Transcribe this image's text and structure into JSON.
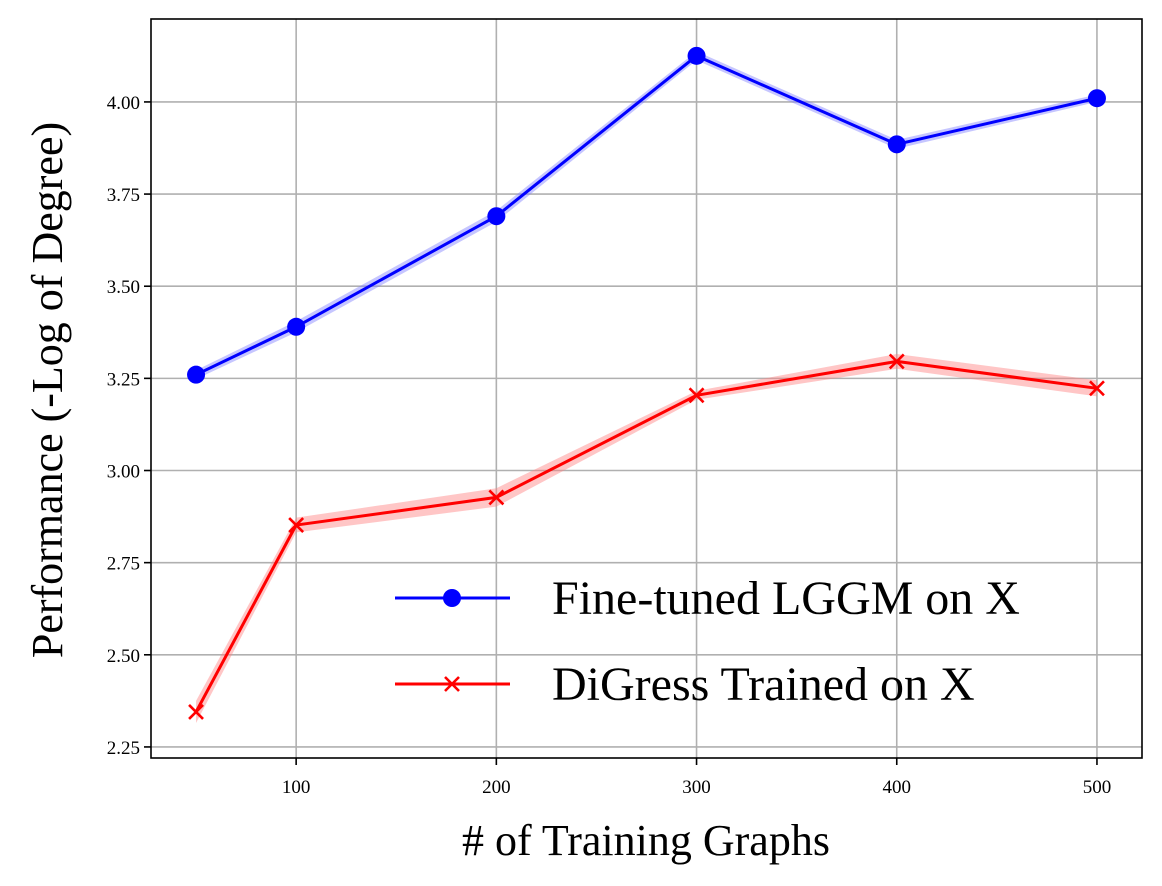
{
  "chart_data": {
    "type": "line",
    "title": "",
    "xlabel": "# of Training Graphs",
    "ylabel": "Performance (-Log of Degree)",
    "x": [
      50,
      100,
      200,
      300,
      400,
      500
    ],
    "xlim": [
      27.5,
      522.5
    ],
    "ylim": [
      2.22,
      4.225
    ],
    "xticks": [
      100,
      200,
      300,
      400,
      500
    ],
    "xtick_labels": [
      "100",
      "200",
      "300",
      "400",
      "500"
    ],
    "yticks": [
      2.25,
      2.5,
      2.75,
      3.0,
      3.25,
      3.5,
      3.75,
      4.0
    ],
    "ytick_labels": [
      "2.25",
      "2.50",
      "2.75",
      "3.00",
      "3.25",
      "3.50",
      "3.75",
      "4.00"
    ],
    "grid": true,
    "legend_position": "lower-right",
    "series": [
      {
        "name": "Fine-tuned LGGM on X",
        "color": "#0000ff",
        "band_color": "#8080ff",
        "marker": "circle",
        "values": [
          3.26,
          3.39,
          3.69,
          4.125,
          3.885,
          4.01
        ],
        "band": [
          0.012,
          0.015,
          0.015,
          0.012,
          0.012,
          0.01
        ]
      },
      {
        "name": "DiGress Trained on X",
        "color": "#ff0000",
        "band_color": "#ff8080",
        "marker": "x",
        "values": [
          2.345,
          2.852,
          2.927,
          3.204,
          3.296,
          3.223
        ],
        "band": [
          0.03,
          0.02,
          0.025,
          0.012,
          0.02,
          0.022
        ]
      }
    ]
  }
}
